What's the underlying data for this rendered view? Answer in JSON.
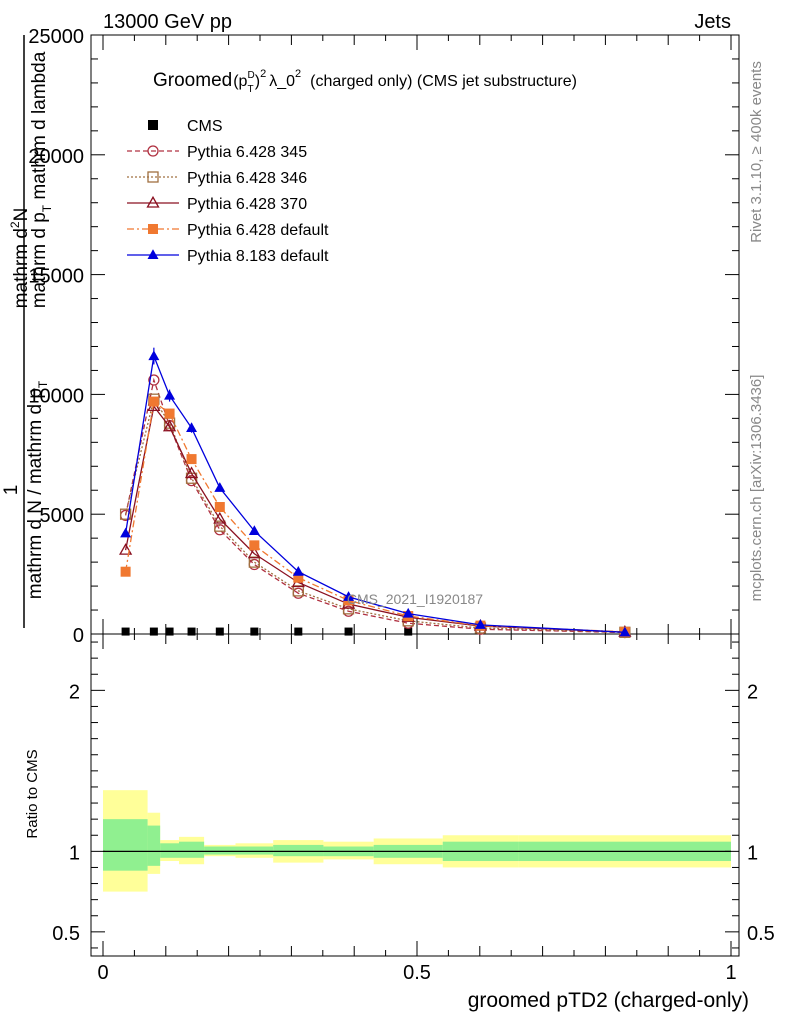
{
  "header": {
    "energy_label": "13000 GeV pp",
    "process_label": "Jets"
  },
  "side": {
    "rivet_label": "Rivet 3.1.10, ≥ 400k events",
    "mcplots_label": "mcplots.cern.ch [arXiv:1306.3436]"
  },
  "chart_data": {
    "type": "scatter",
    "title": {
      "prefix": "Groomed",
      "pt": "(p",
      "pt_sub": "T",
      "pt_sup": "D",
      "pt_close": ")",
      "exp": "2",
      "lambda": "λ_0",
      "lambda_exp": "2",
      "suffix": "(charged only) (CMS jet substructure)"
    },
    "analysis_label": "CMS_2021_I1920187",
    "ylabel_main": {
      "frac_top": "mathrm d^{2}N",
      "frac_num": "1",
      "frac_den_left": "mathrm d N / mathrm d p_T",
      "frac_den_right": "mathrm d p_T mathrm d lambda"
    },
    "ylabel_main_lines": {
      "line1": "mathrm d",
      "line1_sup": "2",
      "line1_end": "N",
      "line2": "mathrm d p",
      "line2_sub": "T",
      "line2_end": " mathrm d lambda",
      "line3": "1",
      "line4": "mathrm d N / mathrm d p",
      "line4_sub": "T"
    },
    "ylabel_ratio": "Ratio to CMS",
    "xlabel": "groomed pTD2 (charged-only)",
    "xlim": [
      0,
      1
    ],
    "ylim_main": [
      0,
      25000
    ],
    "ylim_ratio": [
      0.35,
      2.35
    ],
    "main_yticks": [
      {
        "value": 0,
        "label": "0"
      },
      {
        "value": 5000,
        "label": "5000"
      },
      {
        "value": 10000,
        "label": "10000"
      },
      {
        "value": 15000,
        "label": "15000"
      },
      {
        "value": 20000,
        "label": "20000"
      },
      {
        "value": 25000,
        "label": "25000"
      }
    ],
    "ratio_yticks": [
      {
        "value": 0.5,
        "label": "0.5"
      },
      {
        "value": 1,
        "label": "1"
      },
      {
        "value": 2,
        "label": "2"
      }
    ],
    "xticks": [
      {
        "value": 0,
        "label": "0"
      },
      {
        "value": 0.5,
        "label": "0.5"
      },
      {
        "value": 1,
        "label": "1"
      }
    ],
    "bins": [
      0,
      0.071,
      0.091,
      0.121,
      0.161,
      0.211,
      0.271,
      0.351,
      0.431,
      0.541,
      0.661,
      1.0
    ],
    "ratio_bands": {
      "inner": [
        [
          0.88,
          1.2
        ],
        [
          0.91,
          1.16
        ],
        [
          0.96,
          1.05
        ],
        [
          0.96,
          1.06
        ],
        [
          0.98,
          1.03
        ],
        [
          0.98,
          1.03
        ],
        [
          0.97,
          1.04
        ],
        [
          0.97,
          1.03
        ],
        [
          0.96,
          1.04
        ],
        [
          0.94,
          1.06
        ],
        [
          0.94,
          1.06
        ]
      ],
      "outer": [
        [
          0.75,
          1.38
        ],
        [
          0.86,
          1.24
        ],
        [
          0.94,
          1.07
        ],
        [
          0.92,
          1.09
        ],
        [
          0.97,
          1.04
        ],
        [
          0.96,
          1.05
        ],
        [
          0.93,
          1.07
        ],
        [
          0.95,
          1.06
        ],
        [
          0.92,
          1.08
        ],
        [
          0.9,
          1.1
        ],
        [
          0.9,
          1.1
        ]
      ]
    },
    "legend": [
      {
        "name": "CMS"
      },
      {
        "name": "Pythia 6.428 345"
      },
      {
        "name": "Pythia 6.428 346"
      },
      {
        "name": "Pythia 6.428 370"
      },
      {
        "name": "Pythia 6.428 default"
      },
      {
        "name": "Pythia 8.183 default"
      }
    ],
    "series": [
      {
        "name": "CMS",
        "color": "#000000",
        "marker": "square-filled",
        "line": "none",
        "x": [
          0.036,
          0.081,
          0.106,
          0.141,
          0.186,
          0.241,
          0.311,
          0.391,
          0.486
        ],
        "y": [
          60,
          60,
          60,
          60,
          60,
          60,
          60,
          60,
          60
        ]
      },
      {
        "name": "Pythia 6.428 345",
        "color": "#b03040",
        "marker": "circle-open",
        "line": "dashed",
        "x": [
          0.036,
          0.081,
          0.106,
          0.141,
          0.186,
          0.241,
          0.311,
          0.391,
          0.486,
          0.601,
          0.831
        ],
        "y": [
          4950,
          10600,
          8700,
          6400,
          4350,
          2900,
          1700,
          950,
          450,
          200,
          60
        ]
      },
      {
        "name": "Pythia 6.428 346",
        "color": "#a07040",
        "marker": "square-open",
        "line": "dotted",
        "x": [
          0.036,
          0.081,
          0.106,
          0.141,
          0.186,
          0.241,
          0.311,
          0.391,
          0.486,
          0.601,
          0.831
        ],
        "y": [
          5000,
          9800,
          8800,
          6500,
          4500,
          3000,
          1800,
          1050,
          550,
          250,
          70
        ]
      },
      {
        "name": "Pythia 6.428 370",
        "color": "#8a1020",
        "marker": "triangle-open",
        "line": "solid",
        "x": [
          0.036,
          0.081,
          0.106,
          0.141,
          0.186,
          0.241,
          0.311,
          0.391,
          0.486,
          0.601,
          0.831
        ],
        "y": [
          3500,
          9500,
          8650,
          6700,
          4800,
          3350,
          2150,
          1250,
          700,
          330,
          80
        ]
      },
      {
        "name": "Pythia 6.428 default",
        "color": "#f07830",
        "marker": "square-filled",
        "line": "dashdot",
        "x": [
          0.036,
          0.081,
          0.106,
          0.141,
          0.186,
          0.241,
          0.311,
          0.391,
          0.486,
          0.601,
          0.831
        ],
        "y": [
          2600,
          9700,
          9200,
          7300,
          5300,
          3700,
          2350,
          1400,
          750,
          350,
          90
        ]
      },
      {
        "name": "Pythia 8.183 default",
        "color": "#0000dd",
        "marker": "triangle-filled",
        "line": "solid",
        "x": [
          0.036,
          0.081,
          0.106,
          0.141,
          0.186,
          0.241,
          0.311,
          0.391,
          0.486,
          0.601,
          0.831
        ],
        "y": [
          4200,
          11600,
          9950,
          8600,
          6100,
          4300,
          2600,
          1550,
          850,
          380,
          70
        ],
        "yerr": [
          150,
          350,
          250,
          200,
          100,
          80,
          60,
          40,
          30,
          20,
          10
        ]
      }
    ]
  }
}
